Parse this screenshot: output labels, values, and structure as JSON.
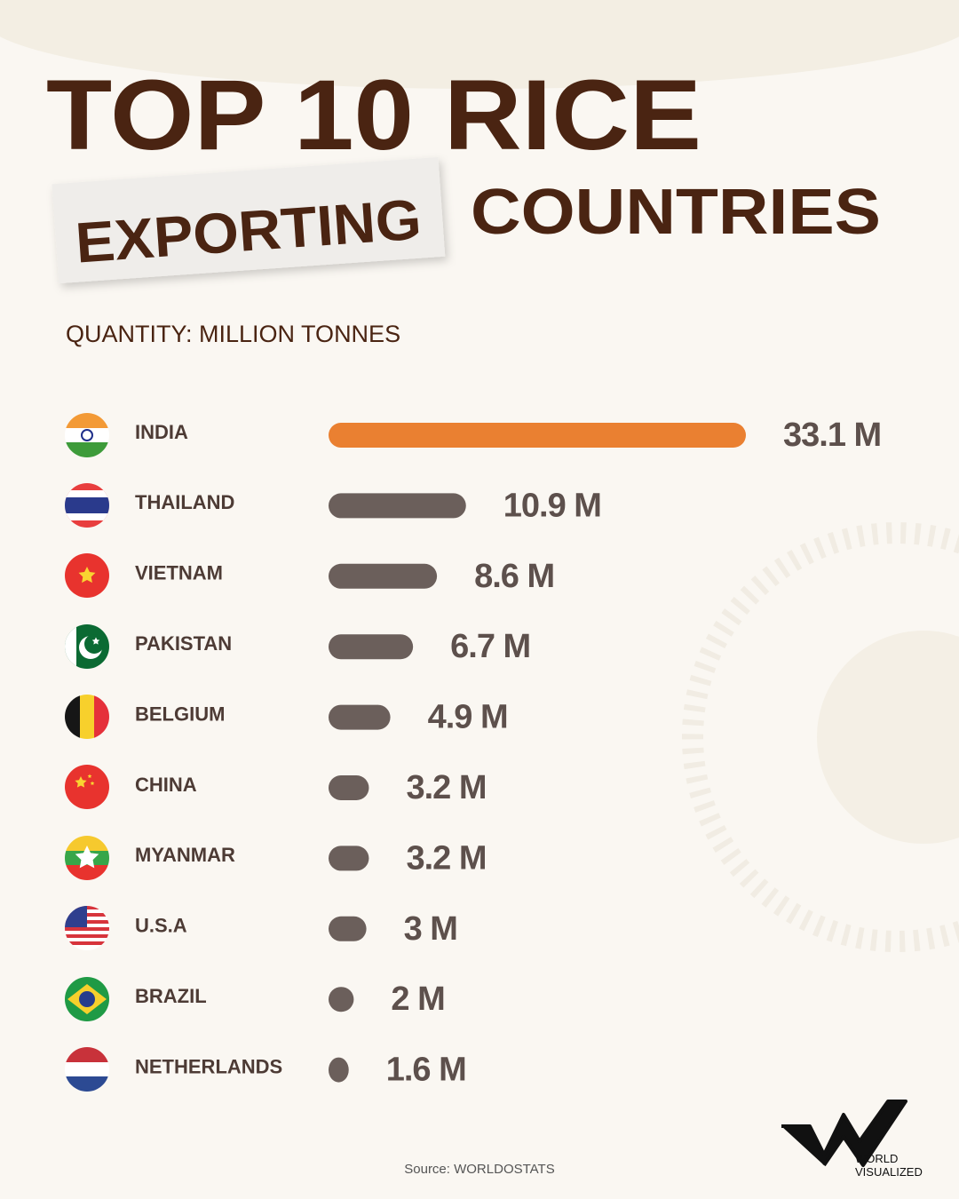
{
  "title_parts": [
    "TOP 10 RICE",
    "EXPORTING",
    "COUNTRIES"
  ],
  "chart_data": {
    "type": "bar",
    "orientation": "horizontal",
    "subtitle": "QUANTITY: MILLION TONNES",
    "categories": [
      "INDIA",
      "THAILAND",
      "VIETNAM",
      "PAKISTAN",
      "BELGIUM",
      "CHINA",
      "MYANMAR",
      "U.S.A",
      "BRAZIL",
      "NETHERLANDS"
    ],
    "values": [
      33.1,
      10.9,
      8.6,
      6.7,
      4.9,
      3.2,
      3.2,
      3,
      2,
      1.6
    ],
    "value_labels": [
      "33.1 M",
      "10.9 M",
      "8.6 M",
      "6.7 M",
      "4.9 M",
      "3.2 M",
      "3.2 M",
      "3 M",
      "2 M",
      "1.6 M"
    ],
    "colors": [
      "#ea8031",
      "#6b5f5b",
      "#6b5f5b",
      "#6b5f5b",
      "#6b5f5b",
      "#6b5f5b",
      "#6b5f5b",
      "#6b5f5b",
      "#6b5f5b",
      "#6b5f5b"
    ]
  },
  "source": "Source: WORLDOSTATS",
  "logo": {
    "line1": "WORLD",
    "line2": "VISUALIZED"
  }
}
